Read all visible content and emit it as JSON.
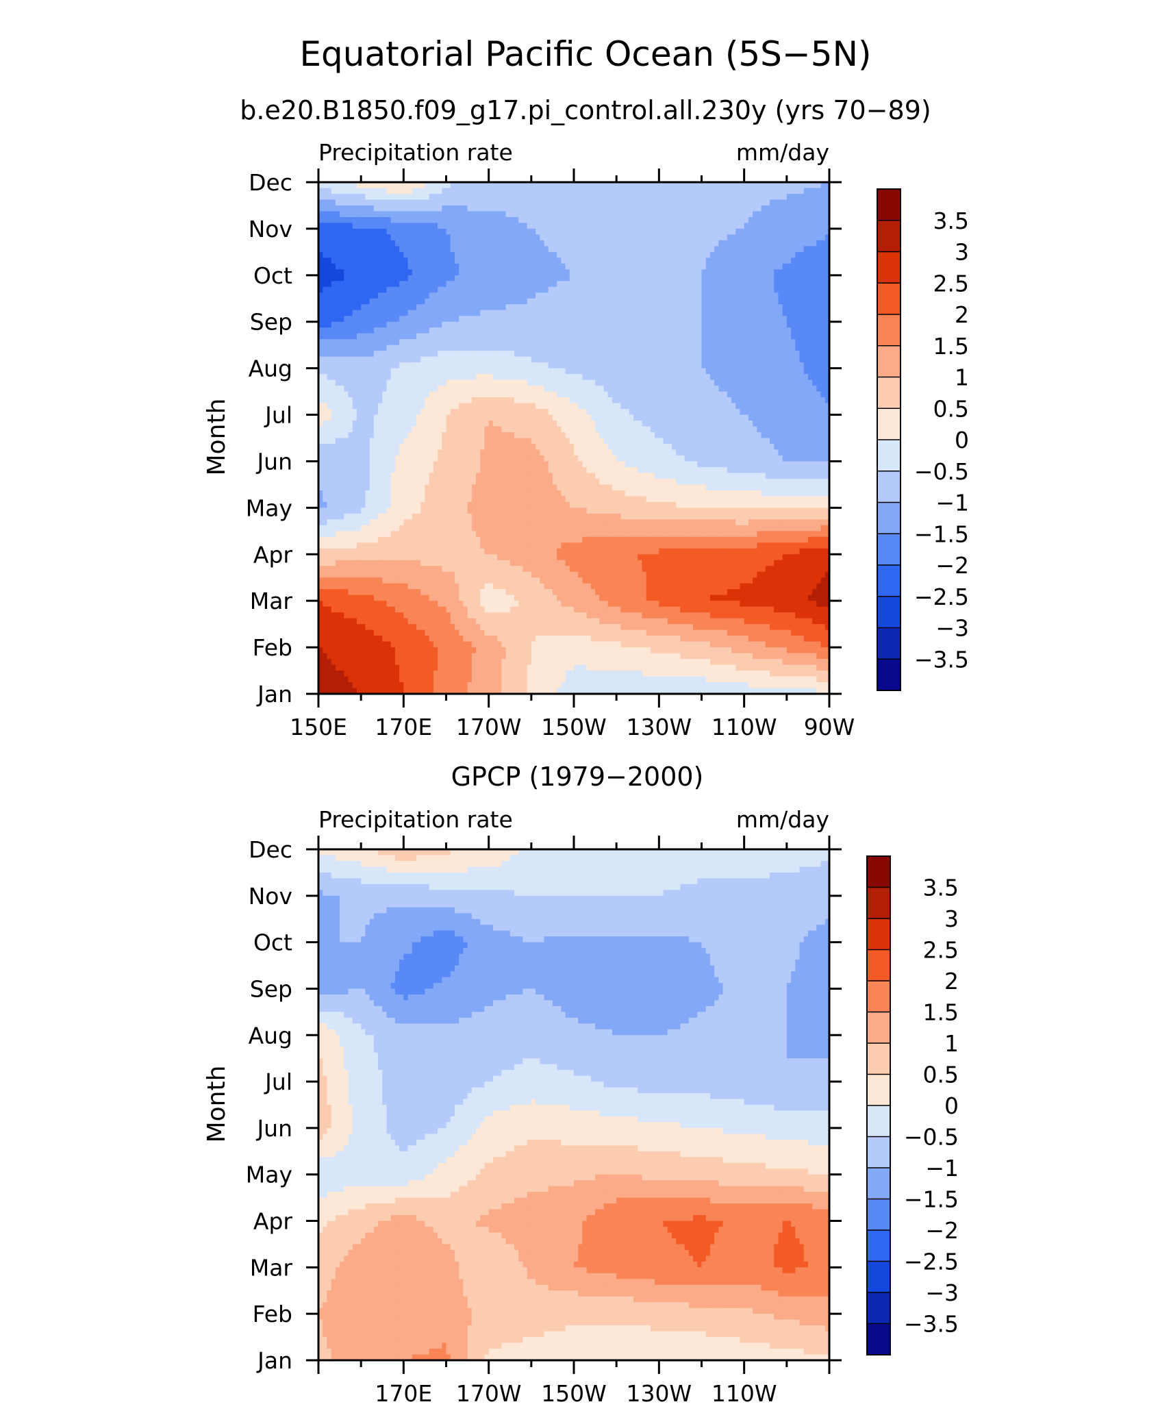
{
  "title": "Equatorial Pacific Ocean (5S−5N)",
  "chart_data": [
    {
      "type": "heatmap",
      "subtitle": "b.e20.B1850.f09_g17.pi_control.all.230y (yrs 70−89)",
      "left_label": "Precipitation rate",
      "right_label": "mm/day",
      "ylabel": "Month",
      "y_ticks": [
        "Jan",
        "Feb",
        "Mar",
        "Apr",
        "May",
        "Jun",
        "Jul",
        "Aug",
        "Sep",
        "Oct",
        "Nov",
        "Dec"
      ],
      "x_tick_labels": [
        "150E",
        "170E",
        "170W",
        "150W",
        "130W",
        "110W",
        "90W"
      ],
      "x_range": [
        150,
        270
      ],
      "colorbar_labels": [
        "3.5",
        "3",
        "2.5",
        "2",
        "1.5",
        "1",
        "0.5",
        "0",
        "−0.5",
        "−1",
        "−1.5",
        "−2",
        "−2.5",
        "−3",
        "−3.5"
      ],
      "grid": [
        [
          3.2,
          3.0,
          2.5,
          1.8,
          1.2,
          0.4,
          -0.3,
          -0.4,
          -0.4,
          -0.4,
          -0.3,
          -0.2,
          -0.1
        ],
        [
          3.0,
          2.8,
          2.4,
          1.9,
          1.3,
          0.5,
          0.2,
          0.4,
          0.6,
          0.8,
          1.2,
          1.6,
          2.0
        ],
        [
          2.5,
          2.2,
          1.8,
          1.4,
          0.2,
          0.6,
          1.2,
          1.7,
          2.1,
          2.5,
          2.6,
          2.8,
          3.2
        ],
        [
          0.6,
          0.8,
          0.9,
          0.8,
          1.0,
          1.3,
          1.7,
          1.9,
          2.1,
          2.2,
          2.3,
          2.5,
          2.9
        ],
        [
          -1.1,
          -0.6,
          0.3,
          0.8,
          1.2,
          1.3,
          1.0,
          0.8,
          0.6,
          0.5,
          0.4,
          0.4,
          0.5
        ],
        [
          -0.9,
          -0.7,
          0.2,
          0.6,
          1.1,
          1.2,
          0.6,
          0.0,
          -0.3,
          -0.6,
          -0.8,
          -1.0,
          -1.1
        ],
        [
          0.3,
          -0.6,
          -0.3,
          0.5,
          1.0,
          0.8,
          0.2,
          -0.4,
          -0.7,
          -0.9,
          -1.0,
          -1.2,
          -1.4
        ],
        [
          -0.6,
          -0.8,
          -0.4,
          -0.2,
          -0.2,
          -0.4,
          -0.6,
          -0.8,
          -0.9,
          -1.0,
          -1.1,
          -1.3,
          -1.8
        ],
        [
          -2.2,
          -1.8,
          -1.4,
          -1.0,
          -0.9,
          -0.9,
          -0.8,
          -0.9,
          -0.9,
          -1.0,
          -1.3,
          -1.5,
          -1.9
        ],
        [
          -2.7,
          -2.4,
          -2.1,
          -1.6,
          -1.3,
          -1.1,
          -1.0,
          -0.9,
          -0.9,
          -1.0,
          -1.3,
          -1.6,
          -2.0
        ],
        [
          -2.3,
          -2.1,
          -1.9,
          -1.5,
          -1.2,
          -1.0,
          -0.9,
          -0.8,
          -0.8,
          -0.9,
          -1.0,
          -1.2,
          -1.4
        ],
        [
          -0.2,
          0.2,
          0.6,
          -0.4,
          -0.7,
          -0.8,
          -0.8,
          -0.8,
          -0.8,
          -0.8,
          -0.9,
          -0.9,
          -1.0
        ]
      ]
    },
    {
      "type": "heatmap",
      "subtitle": "GPCP (1979−2000)",
      "left_label": "Precipitation rate",
      "right_label": "mm/day",
      "ylabel": "Month",
      "y_ticks": [
        "Jan",
        "Feb",
        "Mar",
        "Apr",
        "May",
        "Jun",
        "Jul",
        "Aug",
        "Sep",
        "Oct",
        "Nov",
        "Dec"
      ],
      "x_tick_labels": [
        "",
        "170E",
        "170W",
        "150W",
        "130W",
        "110W",
        ""
      ],
      "x_range": [
        150,
        270
      ],
      "colorbar_labels": [
        "3.5",
        "3",
        "2.5",
        "2",
        "1.5",
        "1",
        "0.5",
        "0",
        "−0.5",
        "−1",
        "−1.5",
        "−2",
        "−2.5",
        "−3",
        "−3.5"
      ],
      "grid": [
        [
          0.9,
          1.2,
          1.5,
          1.6,
          0.4,
          0.3,
          0.2,
          0.1,
          0.1,
          0.1,
          0.2,
          0.3,
          0.4
        ],
        [
          1.0,
          1.3,
          1.2,
          1.3,
          0.8,
          0.7,
          0.6,
          0.6,
          0.7,
          0.8,
          0.9,
          1.1,
          1.3
        ],
        [
          0.8,
          1.3,
          1.4,
          1.2,
          0.5,
          1.1,
          1.5,
          1.7,
          1.9,
          2.0,
          1.8,
          2.1,
          1.9
        ],
        [
          0.4,
          0.8,
          1.2,
          0.8,
          1.1,
          1.3,
          1.4,
          1.9,
          2.0,
          2.1,
          1.9,
          2.0,
          1.9
        ],
        [
          -0.4,
          -0.2,
          -0.3,
          0.2,
          0.6,
          0.8,
          0.9,
          1.0,
          0.9,
          0.8,
          0.7,
          0.6,
          0.5
        ],
        [
          0.8,
          -0.2,
          -0.7,
          -0.5,
          0.2,
          0.4,
          0.3,
          0.2,
          0.1,
          0.0,
          -0.1,
          -0.2,
          -0.3
        ],
        [
          0.7,
          -0.3,
          -0.7,
          -0.8,
          -0.5,
          -0.3,
          -0.4,
          -0.6,
          -0.7,
          -0.7,
          -0.8,
          -1.0,
          -0.9
        ],
        [
          0.4,
          -0.4,
          -0.8,
          -0.9,
          -0.8,
          -0.7,
          -0.9,
          -1.0,
          -1.0,
          -0.9,
          -0.9,
          -1.0,
          -1.1
        ],
        [
          -1.2,
          -1.0,
          -1.7,
          -1.4,
          -1.1,
          -1.0,
          -1.2,
          -1.2,
          -1.3,
          -1.1,
          -0.9,
          -1.0,
          -1.2
        ],
        [
          -1.0,
          -1.0,
          -1.4,
          -1.8,
          -1.2,
          -1.0,
          -1.1,
          -1.1,
          -1.1,
          -1.0,
          -0.8,
          -0.9,
          -1.2
        ],
        [
          -1.1,
          -0.9,
          -0.9,
          -0.7,
          -0.6,
          -0.5,
          -0.5,
          -0.5,
          -0.5,
          -0.6,
          -0.6,
          -0.7,
          -0.8
        ],
        [
          0.1,
          0.4,
          0.9,
          0.6,
          0.4,
          -0.1,
          -0.3,
          -0.3,
          -0.3,
          -0.3,
          -0.3,
          -0.3,
          -0.4
        ]
      ]
    }
  ],
  "colors": {
    "levels_low_to_high": [
      "#08088c",
      "#0c28b4",
      "#1448dc",
      "#2e67f2",
      "#5889f6",
      "#84a8f8",
      "#b4cafa",
      "#d8e6fa",
      "#fde8d8",
      "#fcccb0",
      "#fbab88",
      "#f98456",
      "#f45a26",
      "#dc3208",
      "#b41e04",
      "#880804"
    ]
  }
}
